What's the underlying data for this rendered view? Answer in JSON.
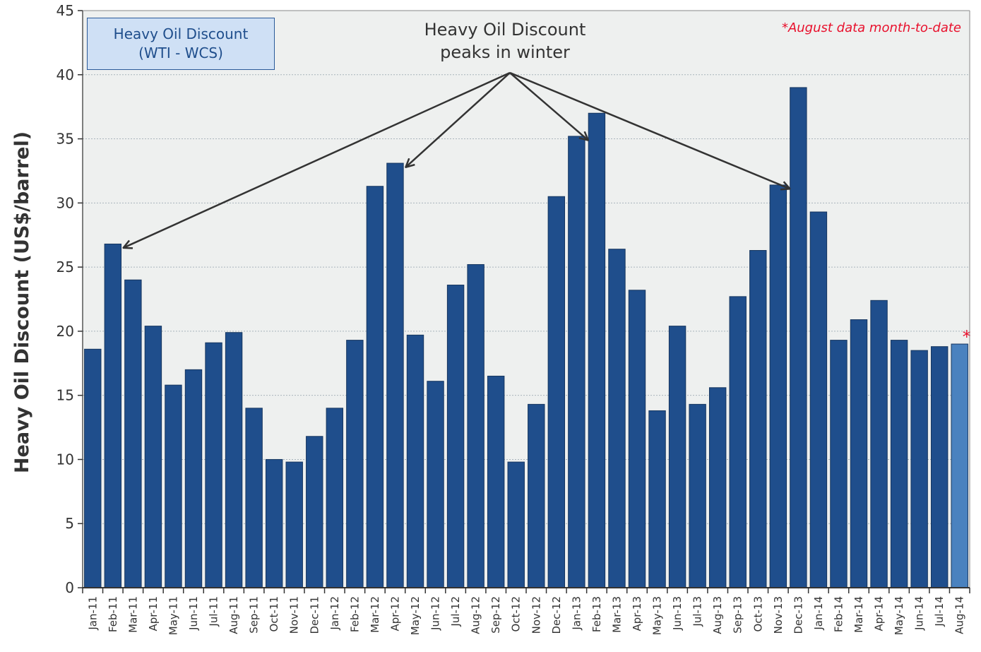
{
  "chart_data": {
    "type": "bar",
    "title": "Heavy Oil Discount (WTI - WCS)",
    "ylabel": "Heavy Oil Discount (US$/barrel)",
    "xlabel": "",
    "ylim": [
      0,
      45
    ],
    "yticks": [
      0,
      5,
      10,
      15,
      20,
      25,
      30,
      35,
      40,
      45
    ],
    "grid": true,
    "categories": [
      "Jan-11",
      "Feb-11",
      "Mar-11",
      "Apr-11",
      "May-11",
      "Jun-11",
      "Jul-11",
      "Aug-11",
      "Sep-11",
      "Oct-11",
      "Nov-11",
      "Dec-11",
      "Jan-12",
      "Feb-12",
      "Mar-12",
      "Apr-12",
      "May-12",
      "Jun-12",
      "Jul-12",
      "Aug-12",
      "Sep-12",
      "Oct-12",
      "Nov-12",
      "Dec-12",
      "Jan-13",
      "Feb-13",
      "Mar-13",
      "Apr-13",
      "May-13",
      "Jun-13",
      "Jul-13",
      "Aug-13",
      "Sep-13",
      "Oct-13",
      "Nov-13",
      "Dec-13",
      "Jan-14",
      "Feb-14",
      "Mar-14",
      "Apr-14",
      "May-14",
      "Jun-14",
      "Jul-14",
      "Aug-14"
    ],
    "values": [
      18.6,
      26.8,
      24.0,
      20.4,
      15.8,
      17.0,
      19.1,
      19.9,
      14.0,
      10.0,
      9.8,
      11.8,
      14.0,
      19.3,
      31.3,
      33.1,
      19.7,
      16.1,
      23.6,
      25.2,
      16.5,
      9.8,
      14.3,
      30.5,
      35.2,
      37.0,
      26.4,
      23.2,
      13.8,
      20.4,
      14.3,
      15.6,
      22.7,
      26.3,
      31.4,
      39.0,
      29.3,
      19.3,
      20.9,
      22.4,
      19.3,
      18.5,
      18.8,
      19.0
    ],
    "bar_color": "#1f4e8c",
    "highlight_index": 43,
    "highlight_color": "#4a82bf",
    "highlight_marker": "*",
    "legend": {
      "line1": "Heavy Oil Discount",
      "line2": "(WTI - WCS)"
    },
    "annotation": {
      "line1": "Heavy Oil Discount",
      "line2": "peaks in winter",
      "arrow_targets": [
        1,
        15,
        24,
        34
      ]
    },
    "note": "*August data month-to-date",
    "colors": {
      "plot_background": "#eef0ef",
      "grid": "#a9b4bc",
      "axis": "#333333",
      "note": "#e8102c",
      "arrow": "#333333"
    }
  }
}
